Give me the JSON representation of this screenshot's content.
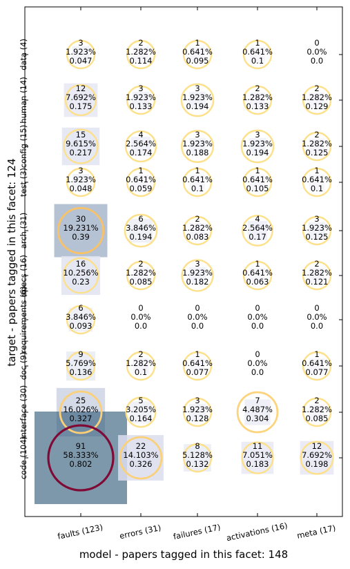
{
  "chart_data": {
    "type": "bubble-matrix",
    "xlabel": "model  -  papers tagged in this facet: 148",
    "ylabel": "target  -  papers tagged in this facet: 124",
    "x_categories": [
      "faults (123)",
      "errors (31)",
      "failures (17)",
      "activations (16)",
      "meta (17)"
    ],
    "y_categories": [
      "data (4)",
      "human (14)",
      "config (15)",
      "test (3)",
      "arch (31)",
      "specs (16)",
      "requirements (6)",
      "doc (9)",
      "interface (30)",
      "code (104)"
    ],
    "cells": [
      [
        [
          "3",
          "1.923%",
          "0.047"
        ],
        [
          "2",
          "1.282%",
          "0.114"
        ],
        [
          "1",
          "0.641%",
          "0.095"
        ],
        [
          "1",
          "0.641%",
          "0.1"
        ],
        [
          "0",
          "0.0%",
          "0.0"
        ]
      ],
      [
        [
          "12",
          "7.692%",
          "0.175"
        ],
        [
          "3",
          "1.923%",
          "0.133"
        ],
        [
          "3",
          "1.923%",
          "0.194"
        ],
        [
          "2",
          "1.282%",
          "0.133"
        ],
        [
          "2",
          "1.282%",
          "0.129"
        ]
      ],
      [
        [
          "15",
          "9.615%",
          "0.217"
        ],
        [
          "4",
          "2.564%",
          "0.174"
        ],
        [
          "3",
          "1.923%",
          "0.188"
        ],
        [
          "3",
          "1.923%",
          "0.194"
        ],
        [
          "2",
          "1.282%",
          "0.125"
        ]
      ],
      [
        [
          "3",
          "1.923%",
          "0.048"
        ],
        [
          "1",
          "0.641%",
          "0.059"
        ],
        [
          "1",
          "0.641%",
          "0.1"
        ],
        [
          "1",
          "0.641%",
          "0.105"
        ],
        [
          "1",
          "0.641%",
          "0.1"
        ]
      ],
      [
        [
          "30",
          "19.231%",
          "0.39"
        ],
        [
          "6",
          "3.846%",
          "0.194"
        ],
        [
          "2",
          "1.282%",
          "0.083"
        ],
        [
          "4",
          "2.564%",
          "0.17"
        ],
        [
          "3",
          "1.923%",
          "0.125"
        ]
      ],
      [
        [
          "16",
          "10.256%",
          "0.23"
        ],
        [
          "2",
          "1.282%",
          "0.085"
        ],
        [
          "3",
          "1.923%",
          "0.182"
        ],
        [
          "1",
          "0.641%",
          "0.063"
        ],
        [
          "2",
          "1.282%",
          "0.121"
        ]
      ],
      [
        [
          "6",
          "3.846%",
          "0.093"
        ],
        [
          "0",
          "0.0%",
          "0.0"
        ],
        [
          "0",
          "0.0%",
          "0.0"
        ],
        [
          "0",
          "0.0%",
          "0.0"
        ],
        [
          "0",
          "0.0%",
          "0.0"
        ]
      ],
      [
        [
          "9",
          "5.769%",
          "0.136"
        ],
        [
          "2",
          "1.282%",
          "0.1"
        ],
        [
          "1",
          "0.641%",
          "0.077"
        ],
        [
          "0",
          "0.0%",
          "0.0"
        ],
        [
          "1",
          "0.641%",
          "0.077"
        ]
      ],
      [
        [
          "25",
          "16.026%",
          "0.327"
        ],
        [
          "5",
          "3.205%",
          "0.164"
        ],
        [
          "3",
          "1.923%",
          "0.128"
        ],
        [
          "7",
          "4.487%",
          "0.304"
        ],
        [
          "2",
          "1.282%",
          "0.085"
        ]
      ],
      [
        [
          "91",
          "58.333%",
          "0.802"
        ],
        [
          "22",
          "14.103%",
          "0.326"
        ],
        [
          "8",
          "5.128%",
          "0.132"
        ],
        [
          "11",
          "7.051%",
          "0.183"
        ],
        [
          "12",
          "7.692%",
          "0.198"
        ]
      ]
    ],
    "colors": {
      "low": "#fde08a",
      "mid": "#f5a040",
      "high": "#7f0a35",
      "square": "#2f5878"
    }
  }
}
